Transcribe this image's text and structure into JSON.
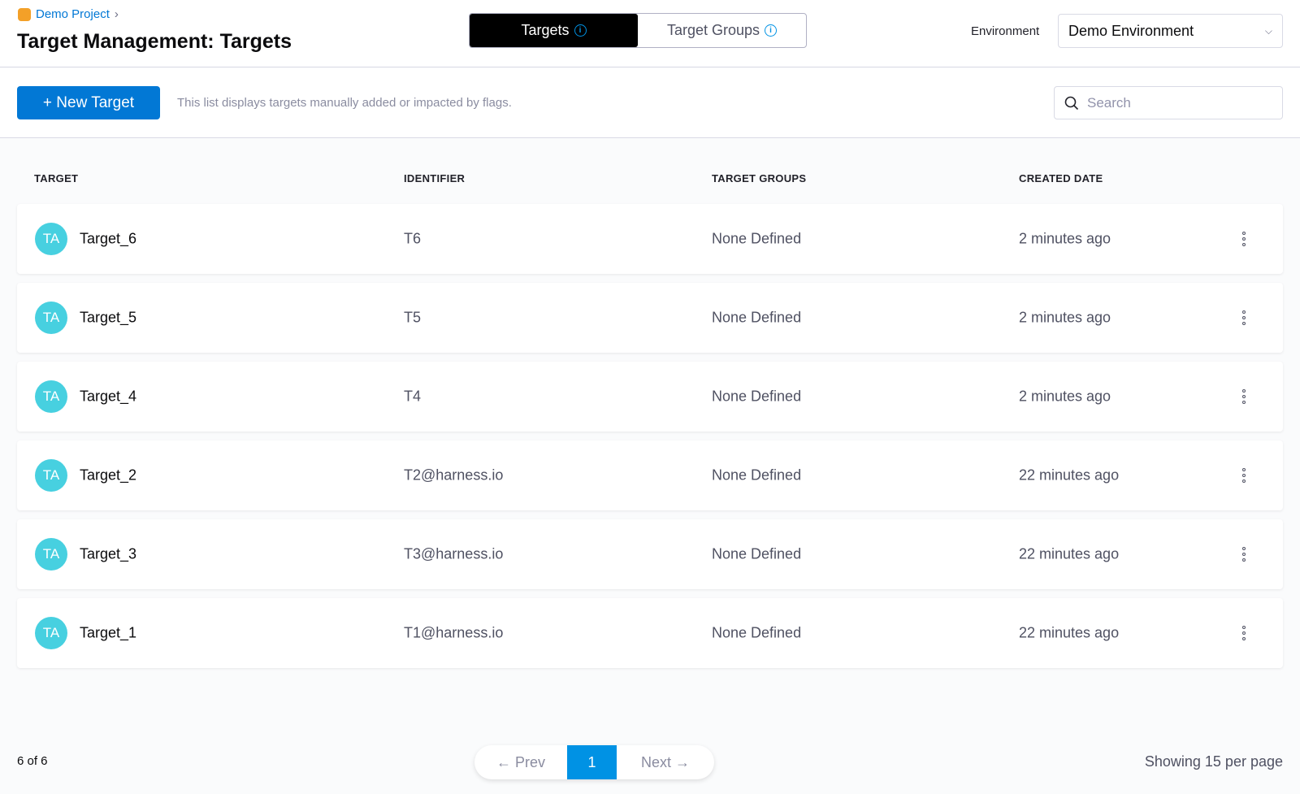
{
  "breadcrumb": {
    "project": "Demo Project"
  },
  "page_title": "Target Management: Targets",
  "tabs": [
    {
      "label": "Targets",
      "active": true
    },
    {
      "label": "Target Groups",
      "active": false
    }
  ],
  "environment": {
    "label": "Environment",
    "selected": "Demo Environment"
  },
  "toolbar": {
    "new_target": "+ New Target",
    "hint": "This list displays targets manually added or impacted by flags.",
    "search_placeholder": "Search"
  },
  "table": {
    "columns": [
      "TARGET",
      "IDENTIFIER",
      "TARGET GROUPS",
      "CREATED DATE"
    ],
    "rows": [
      {
        "avatar": "TA",
        "name": "Target_6",
        "identifier": "T6",
        "groups": "None Defined",
        "created": "2 minutes ago"
      },
      {
        "avatar": "TA",
        "name": "Target_5",
        "identifier": "T5",
        "groups": "None Defined",
        "created": "2 minutes ago"
      },
      {
        "avatar": "TA",
        "name": "Target_4",
        "identifier": "T4",
        "groups": "None Defined",
        "created": "2 minutes ago"
      },
      {
        "avatar": "TA",
        "name": "Target_2",
        "identifier": "T2@harness.io",
        "groups": "None Defined",
        "created": "22 minutes ago"
      },
      {
        "avatar": "TA",
        "name": "Target_3",
        "identifier": "T3@harness.io",
        "groups": "None Defined",
        "created": "22 minutes ago"
      },
      {
        "avatar": "TA",
        "name": "Target_1",
        "identifier": "T1@harness.io",
        "groups": "None Defined",
        "created": "22 minutes ago"
      }
    ]
  },
  "footer": {
    "count": "6 of 6",
    "prev": "← Prev",
    "page": "1",
    "next": "Next →",
    "per_page": "Showing 15 per page"
  },
  "colors": {
    "primary": "#0278d5",
    "avatar": "#47d0e0",
    "active_page": "#0092e4"
  }
}
